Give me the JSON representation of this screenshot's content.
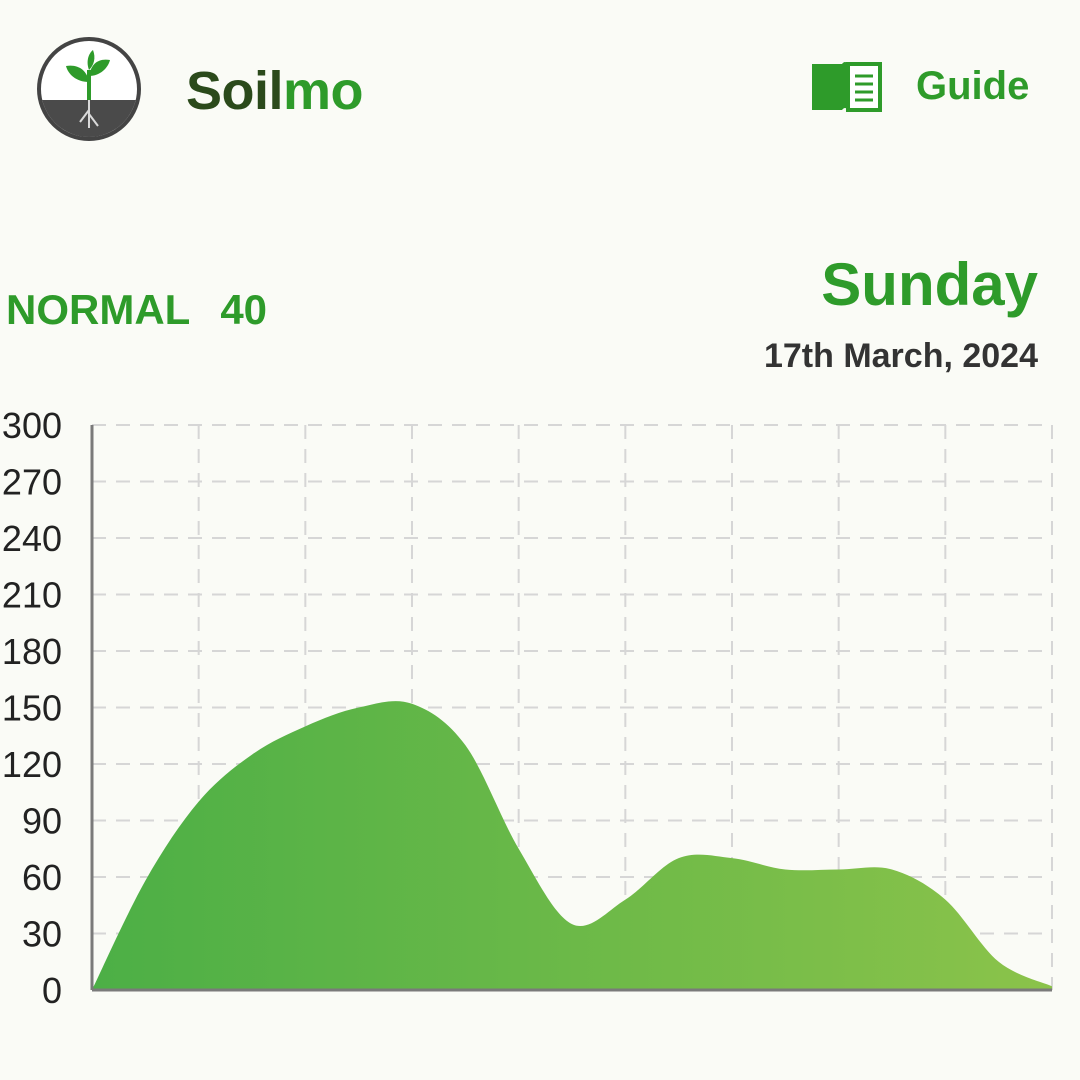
{
  "header": {
    "app_name_part1": "Soil",
    "app_name_part2": "mo",
    "guide_label": "Guide",
    "logo_icon": "seedling-soil-icon",
    "guide_icon": "book-icon"
  },
  "status": {
    "label": "NORMAL",
    "value": "40"
  },
  "date": {
    "day": "Sunday",
    "full": "17th March, 2024"
  },
  "colors": {
    "accent": "#2e9b2a",
    "fill_start": "#4caf46",
    "fill_end": "#8bc34a"
  },
  "chart_data": {
    "type": "area",
    "title": "",
    "xlabel": "",
    "ylabel": "",
    "ylim": [
      0,
      300
    ],
    "yticks": [
      "0",
      "30",
      "60",
      "90",
      "120",
      "150",
      "180",
      "210",
      "240",
      "270",
      "300"
    ],
    "x": [
      0,
      0.5,
      1,
      1.5,
      2,
      2.5,
      3,
      3.5,
      4,
      4.5,
      5,
      5.5,
      6,
      6.5,
      7,
      7.5,
      8,
      8.5,
      9
    ],
    "series": [
      {
        "values": [
          0,
          58,
          100,
          125,
          140,
          150,
          152,
          130,
          75,
          35,
          48,
          70,
          70,
          64,
          64,
          64,
          48,
          15,
          2
        ]
      }
    ],
    "grid": true
  }
}
